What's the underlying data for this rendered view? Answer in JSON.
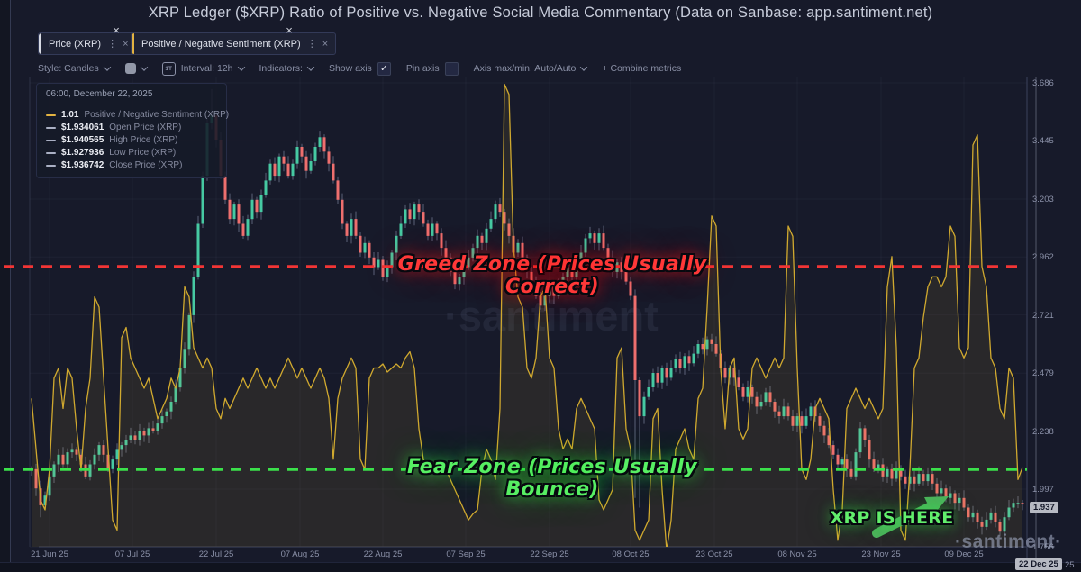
{
  "header": {
    "title": "XRP Ledger ($XRP) Ratio of Positive vs. Negative Social Media Commentary (Data on Sanbase: app.santiment.net)"
  },
  "tabs": [
    {
      "label": "Price (XRP)",
      "accent": "#d7dae3",
      "menu_icon": "⋮",
      "close_icon": "×",
      "corner_close_icon": "×"
    },
    {
      "label": "Positive / Negative Sentiment (XRP)",
      "accent": "#e3b341",
      "menu_icon": "⋮",
      "close_icon": "×",
      "corner_close_icon": "×"
    }
  ],
  "toolbar": {
    "style_label": "Style: Candles",
    "interval_icon_text": "1T",
    "interval_label": "Interval: 12h",
    "indicators_label": "Indicators:",
    "show_axis_label": "Show axis",
    "show_axis_check_glyph": "✓",
    "pin_axis_label": "Pin axis",
    "axis_maxmin_label": "Axis max/min: Auto/Auto",
    "combine_label": "+  Combine metrics"
  },
  "tooltip": {
    "timestamp": "06:00, December 22, 2025",
    "rows": [
      {
        "value": "1.01",
        "label": "Positive / Negative Sentiment (XRP)",
        "color": "#e3b341"
      },
      {
        "value": "$1.934061",
        "label": "Open Price (XRP)",
        "color": "#aab0c4"
      },
      {
        "value": "$1.940565",
        "label": "High Price (XRP)",
        "color": "#aab0c4"
      },
      {
        "value": "$1.927936",
        "label": "Low Price (XRP)",
        "color": "#aab0c4"
      },
      {
        "value": "$1.936742",
        "label": "Close Price (XRP)",
        "color": "#aab0c4"
      }
    ]
  },
  "annotations": {
    "greed": "Greed Zone (Prices Usually Correct)",
    "fear": "Fear Zone (Prices Usually Bounce)",
    "xrp_here": "XRP IS HERE"
  },
  "watermarks": {
    "center": "·santiment",
    "corner": "·santiment·"
  },
  "axis": {
    "price_ticks": [
      3.686,
      3.445,
      3.203,
      2.962,
      2.721,
      2.479,
      2.238,
      1.997,
      1.756
    ],
    "current_price_label": "1.937",
    "date_ticks": [
      "21 Jun 25",
      "07 Jul 25",
      "22 Jul 25",
      "07 Aug 25",
      "22 Aug 25",
      "07 Sep 25",
      "22 Sep 25",
      "08 Oct 25",
      "23 Oct 25",
      "08 Nov 25",
      "23 Nov 25",
      "09 Dec 25"
    ],
    "crosshair_date_label": "22 Dec 25",
    "crosshair_date_suffix": "25"
  },
  "chart_data": {
    "type": "candlestick+line",
    "interval": "12h",
    "x_range_labels": [
      "21 Jun 25",
      "22 Dec 25"
    ],
    "price_axis_range": [
      1.756,
      3.686
    ],
    "zones": {
      "greed": {
        "label": "Greed Zone (Prices Usually Correct)",
        "sentiment_value": 2.0,
        "color": "#f23535"
      },
      "fear": {
        "label": "Fear Zone (Prices Usually Bounce)",
        "sentiment_value": 1.0,
        "color": "#3be14b"
      }
    },
    "colors": {
      "up": "#46c9a2",
      "down": "#ee6f6e",
      "wick": "#9aa0bc",
      "sentiment": "#d0a92f"
    },
    "series": [
      {
        "name": "Price (XRP)",
        "type": "candlestick",
        "unit": "USD",
        "closes": [
          2.08,
          2.0,
          1.93,
          1.97,
          2.05,
          2.1,
          2.14,
          2.1,
          2.15,
          2.16,
          2.14,
          2.1,
          2.05,
          2.1,
          2.14,
          2.18,
          2.14,
          2.08,
          2.12,
          2.16,
          2.18,
          2.2,
          2.22,
          2.2,
          2.24,
          2.22,
          2.25,
          2.24,
          2.27,
          2.3,
          2.32,
          2.36,
          2.42,
          2.5,
          2.58,
          2.72,
          2.88,
          3.1,
          3.3,
          3.52,
          3.55,
          3.45,
          3.3,
          3.2,
          3.12,
          3.18,
          3.1,
          3.05,
          3.12,
          3.2,
          3.15,
          3.22,
          3.28,
          3.35,
          3.3,
          3.38,
          3.35,
          3.3,
          3.35,
          3.42,
          3.38,
          3.32,
          3.36,
          3.42,
          3.46,
          3.4,
          3.35,
          3.28,
          3.2,
          3.1,
          3.05,
          3.12,
          3.05,
          2.98,
          3.02,
          2.96,
          2.92,
          2.95,
          2.88,
          2.92,
          2.98,
          3.05,
          3.1,
          3.16,
          3.12,
          3.18,
          3.15,
          3.1,
          3.05,
          3.1,
          3.06,
          3.0,
          2.96,
          2.9,
          2.85,
          2.88,
          2.92,
          2.96,
          3.0,
          3.05,
          3.02,
          3.08,
          3.12,
          3.18,
          3.15,
          3.1,
          3.05,
          2.98,
          3.02,
          2.96,
          2.9,
          2.85,
          2.8,
          2.76,
          2.8,
          2.84,
          2.8,
          2.84,
          2.88,
          2.92,
          2.88,
          2.94,
          2.98,
          3.04,
          3.06,
          3.02,
          3.06,
          3.0,
          2.96,
          2.9,
          2.94,
          2.9,
          2.86,
          2.8,
          2.45,
          2.3,
          2.38,
          2.42,
          2.48,
          2.44,
          2.5,
          2.46,
          2.5,
          2.54,
          2.5,
          2.55,
          2.52,
          2.56,
          2.6,
          2.58,
          2.62,
          2.6,
          2.56,
          2.5,
          2.46,
          2.5,
          2.46,
          2.42,
          2.38,
          2.42,
          2.38,
          2.34,
          2.36,
          2.4,
          2.36,
          2.32,
          2.3,
          2.34,
          2.3,
          2.26,
          2.3,
          2.26,
          2.3,
          2.34,
          2.3,
          2.26,
          2.22,
          2.18,
          2.14,
          2.1,
          2.12,
          2.08,
          2.05,
          2.15,
          2.25,
          2.2,
          2.12,
          2.08,
          2.1,
          2.05,
          2.08,
          2.04,
          2.08,
          2.05,
          2.02,
          2.05,
          2.02,
          2.06,
          2.03,
          2.06,
          2.02,
          1.98,
          2.0,
          1.96,
          1.98,
          1.94,
          1.96,
          1.92,
          1.88,
          1.9,
          1.86,
          1.84,
          1.87,
          1.9,
          1.86,
          1.82,
          1.88,
          1.92,
          1.94,
          1.94,
          1.937
        ],
        "wick_overrides": {
          "2": [
            null,
            1.88
          ],
          "40": [
            3.66,
            null
          ],
          "134": [
            null,
            1.96
          ],
          "135": [
            null,
            1.92
          ],
          "215": [
            null,
            1.8
          ]
        }
      },
      {
        "name": "Positive / Negative Sentiment (XRP)",
        "type": "line",
        "current": 1.01,
        "values": [
          1.35,
          1.1,
          0.85,
          0.8,
          1.0,
          1.45,
          1.5,
          1.3,
          1.5,
          1.45,
          1.2,
          1.0,
          1.3,
          1.45,
          1.85,
          1.8,
          1.45,
          1.1,
          0.75,
          0.7,
          1.65,
          1.7,
          1.55,
          1.5,
          1.45,
          1.4,
          1.45,
          1.35,
          1.25,
          1.3,
          1.35,
          1.45,
          1.4,
          1.5,
          1.9,
          1.85,
          1.6,
          1.55,
          1.5,
          1.55,
          1.5,
          1.3,
          1.25,
          1.35,
          1.3,
          1.35,
          1.4,
          1.45,
          1.4,
          1.45,
          1.5,
          1.45,
          1.4,
          1.45,
          1.4,
          1.45,
          1.5,
          1.55,
          1.5,
          1.45,
          1.5,
          1.45,
          1.4,
          1.45,
          1.5,
          1.45,
          1.35,
          1.05,
          1.35,
          1.45,
          1.5,
          1.55,
          1.5,
          1.05,
          1.0,
          1.45,
          1.5,
          1.5,
          1.52,
          1.48,
          1.5,
          1.52,
          1.5,
          1.55,
          1.58,
          1.5,
          1.2,
          1.05,
          1.0,
          1.02,
          1.0,
          0.98,
          1.0,
          0.95,
          0.9,
          0.85,
          0.8,
          0.75,
          0.78,
          0.8,
          1.0,
          1.1,
          1.05,
          0.95,
          1.3,
          2.9,
          2.85,
          2.1,
          1.85,
          1.8,
          1.5,
          1.45,
          1.55,
          1.85,
          1.9,
          1.55,
          1.5,
          1.2,
          1.1,
          1.15,
          1.1,
          1.3,
          1.35,
          1.3,
          1.25,
          1.2,
          0.85,
          0.8,
          0.85,
          0.9,
          1.55,
          1.6,
          1.2,
          1.1,
          0.7,
          0.65,
          0.7,
          0.75,
          1.25,
          1.3,
          0.9,
          0.6,
          0.75,
          1.1,
          1.15,
          1.2,
          1.1,
          1.05,
          1.35,
          1.4,
          1.8,
          2.25,
          2.2,
          1.5,
          1.2,
          1.5,
          1.55,
          1.2,
          1.15,
          1.2,
          1.5,
          1.55,
          1.5,
          1.45,
          1.5,
          1.55,
          1.5,
          1.55,
          2.2,
          2.15,
          1.5,
          1.0,
          0.95,
          1.05,
          1.3,
          1.35,
          1.3,
          1.25,
          0.9,
          0.65,
          0.8,
          1.3,
          1.35,
          1.4,
          1.35,
          1.3,
          1.35,
          1.3,
          1.25,
          1.3,
          1.9,
          2.05,
          1.6,
          0.7,
          0.65,
          1.0,
          1.5,
          1.55,
          1.75,
          1.9,
          1.95,
          1.95,
          1.9,
          1.95,
          2.2,
          2.15,
          1.6,
          1.55,
          1.6,
          2.6,
          2.65,
          2.0,
          1.9,
          1.55,
          1.5,
          1.3,
          1.25,
          1.5,
          1.45,
          0.95,
          1.01
        ]
      }
    ]
  }
}
